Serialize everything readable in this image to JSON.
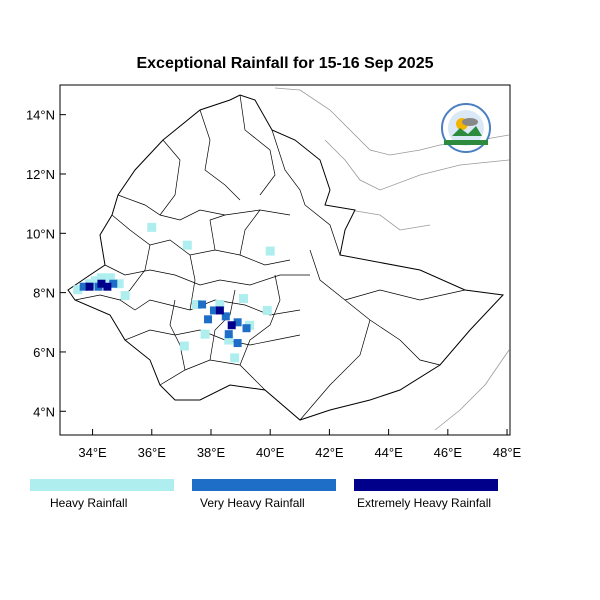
{
  "title": "Exceptional Rainfall for 15-16 Sep 2025",
  "map": {
    "lon_range": [
      32.9,
      48.1
    ],
    "lat_range": [
      3.2,
      15.0
    ],
    "x_ticks": [
      {
        "value": 34,
        "label": "34°E"
      },
      {
        "value": 36,
        "label": "36°E"
      },
      {
        "value": 38,
        "label": "38°E"
      },
      {
        "value": 40,
        "label": "40°E"
      },
      {
        "value": 42,
        "label": "42°E"
      },
      {
        "value": 44,
        "label": "44°E"
      },
      {
        "value": 46,
        "label": "46°E"
      },
      {
        "value": 48,
        "label": "48°E"
      }
    ],
    "y_ticks": [
      {
        "value": 4,
        "label": "4°N"
      },
      {
        "value": 6,
        "label": "6°N"
      },
      {
        "value": 8,
        "label": "8°N"
      },
      {
        "value": 10,
        "label": "10°N"
      },
      {
        "value": 12,
        "label": "12°N"
      },
      {
        "value": 14,
        "label": "14°N"
      }
    ],
    "country": "Ethiopia",
    "logo_icon": "meteorology-agency-logo"
  },
  "rainfall_categories": [
    {
      "key": "heavy",
      "label": "Heavy Rainfall",
      "color": "#aeeeee"
    },
    {
      "key": "very_heavy",
      "label": "Very Heavy Rainfall",
      "color": "#1e6ec8"
    },
    {
      "key": "extreme",
      "label": "Extremely Heavy Rainfall",
      "color": "#00008b"
    }
  ],
  "rainfall_cells": [
    {
      "lon": 33.9,
      "lat": 8.3,
      "level": "heavy"
    },
    {
      "lon": 34.1,
      "lat": 8.4,
      "level": "heavy"
    },
    {
      "lon": 34.3,
      "lat": 8.5,
      "level": "heavy"
    },
    {
      "lon": 34.6,
      "lat": 8.5,
      "level": "heavy"
    },
    {
      "lon": 34.9,
      "lat": 8.3,
      "level": "heavy"
    },
    {
      "lon": 33.5,
      "lat": 8.1,
      "level": "heavy"
    },
    {
      "lon": 35.1,
      "lat": 7.9,
      "level": "heavy"
    },
    {
      "lon": 36.0,
      "lat": 10.2,
      "level": "heavy"
    },
    {
      "lon": 37.2,
      "lat": 9.6,
      "level": "heavy"
    },
    {
      "lon": 37.5,
      "lat": 7.6,
      "level": "heavy"
    },
    {
      "lon": 38.3,
      "lat": 7.6,
      "level": "heavy"
    },
    {
      "lon": 39.1,
      "lat": 7.8,
      "level": "heavy"
    },
    {
      "lon": 39.9,
      "lat": 7.4,
      "level": "heavy"
    },
    {
      "lon": 37.8,
      "lat": 6.6,
      "level": "heavy"
    },
    {
      "lon": 38.6,
      "lat": 6.4,
      "level": "heavy"
    },
    {
      "lon": 37.1,
      "lat": 6.2,
      "level": "heavy"
    },
    {
      "lon": 38.8,
      "lat": 5.8,
      "level": "heavy"
    },
    {
      "lon": 39.3,
      "lat": 6.9,
      "level": "heavy"
    },
    {
      "lon": 40.0,
      "lat": 9.4,
      "level": "heavy"
    },
    {
      "lon": 33.7,
      "lat": 8.2,
      "level": "very_heavy"
    },
    {
      "lon": 34.2,
      "lat": 8.2,
      "level": "very_heavy"
    },
    {
      "lon": 34.7,
      "lat": 8.3,
      "level": "very_heavy"
    },
    {
      "lon": 37.7,
      "lat": 7.6,
      "level": "very_heavy"
    },
    {
      "lon": 38.1,
      "lat": 7.4,
      "level": "very_heavy"
    },
    {
      "lon": 38.5,
      "lat": 7.2,
      "level": "very_heavy"
    },
    {
      "lon": 38.9,
      "lat": 7.0,
      "level": "very_heavy"
    },
    {
      "lon": 39.2,
      "lat": 6.8,
      "level": "very_heavy"
    },
    {
      "lon": 38.6,
      "lat": 6.6,
      "level": "very_heavy"
    },
    {
      "lon": 38.9,
      "lat": 6.3,
      "level": "very_heavy"
    },
    {
      "lon": 37.9,
      "lat": 7.1,
      "level": "very_heavy"
    },
    {
      "lon": 34.3,
      "lat": 8.3,
      "level": "extreme"
    },
    {
      "lon": 34.5,
      "lat": 8.2,
      "level": "extreme"
    },
    {
      "lon": 33.9,
      "lat": 8.2,
      "level": "extreme"
    },
    {
      "lon": 38.3,
      "lat": 7.4,
      "level": "extreme"
    },
    {
      "lon": 38.7,
      "lat": 6.9,
      "level": "extreme"
    }
  ]
}
